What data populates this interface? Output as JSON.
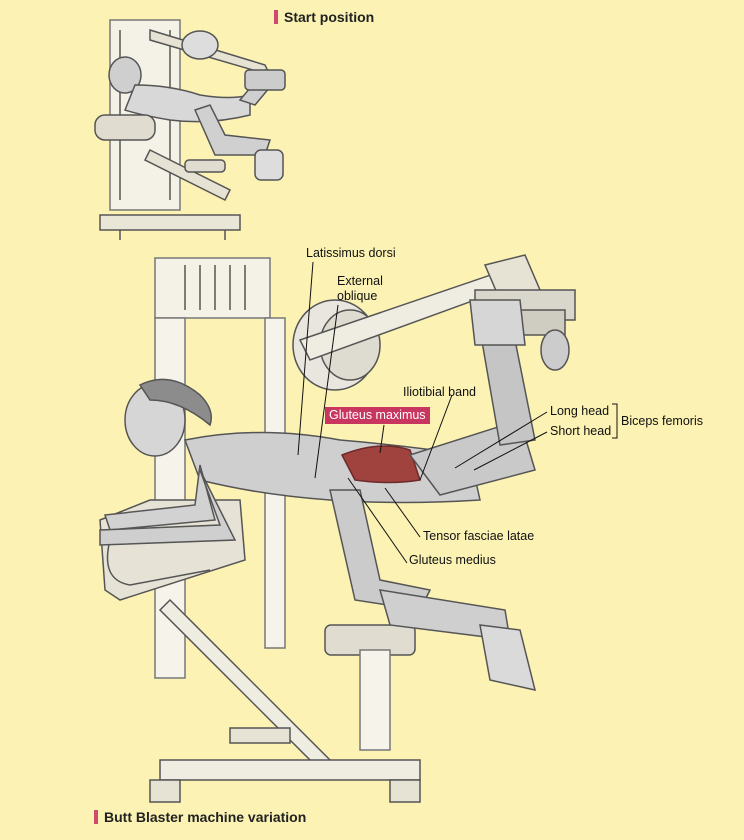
{
  "headings": {
    "start": "Start position",
    "variation": "Butt Blaster machine variation"
  },
  "labels": {
    "latissimus": "Latissimus dorsi",
    "external_1": "External",
    "external_2": "oblique",
    "gluteus_max": "Gluteus maximus",
    "iliotibial": "Iliotibial band",
    "long_head": "Long head",
    "short_head": "Short head",
    "biceps": "Biceps femoris",
    "tensor": "Tensor fasciae latae",
    "gluteus_med": "Gluteus medius"
  },
  "colors": {
    "background": "#fbf2b3",
    "accent": "#d04a6e",
    "highlight": "#c8365f"
  }
}
